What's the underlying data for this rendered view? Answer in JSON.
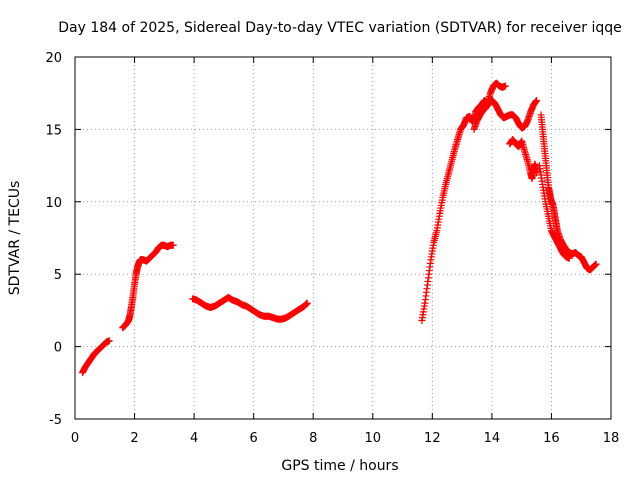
{
  "chart_data": {
    "type": "scatter",
    "title": "Day 184 of 2025, Sidereal Day-to-day VTEC variation (SDTVAR) for receiver iqqe",
    "xlabel": "GPS time / hours",
    "ylabel": "SDTVAR / TECUs",
    "xlim": [
      0,
      18
    ],
    "ylim": [
      -5,
      20
    ],
    "xticks": [
      0,
      2,
      4,
      6,
      8,
      10,
      12,
      14,
      16,
      18
    ],
    "yticks": [
      -5,
      0,
      5,
      10,
      15,
      20
    ],
    "grid": true,
    "marker": "+",
    "color": "#ff0000",
    "series": [
      {
        "name": "segment-1",
        "x": [
          0.25,
          0.35,
          0.45,
          0.55,
          0.65,
          0.75,
          0.85,
          0.95,
          1.05,
          1.15
        ],
        "y": [
          -1.8,
          -1.4,
          -1.1,
          -0.8,
          -0.5,
          -0.3,
          -0.1,
          0.1,
          0.3,
          0.4
        ]
      },
      {
        "name": "segment-2",
        "x": [
          1.6,
          1.7,
          1.8,
          1.85,
          1.9,
          1.95,
          2.0,
          2.05,
          2.1,
          2.15,
          2.2,
          2.3,
          2.4,
          2.5,
          2.6,
          2.7,
          2.8,
          2.9,
          3.0,
          3.1,
          3.2,
          3.3
        ],
        "y": [
          1.3,
          1.5,
          1.8,
          2.2,
          2.8,
          3.5,
          4.3,
          5.0,
          5.5,
          5.8,
          6.0,
          6.0,
          5.9,
          6.1,
          6.3,
          6.5,
          6.8,
          7.0,
          7.0,
          6.9,
          7.0,
          7.0
        ]
      },
      {
        "name": "segment-3",
        "x": [
          3.95,
          4.1,
          4.25,
          4.4,
          4.55,
          4.7,
          4.85,
          5.0,
          5.15,
          5.3,
          5.45,
          5.6,
          5.75,
          5.9,
          6.05,
          6.2,
          6.35,
          6.5,
          6.65,
          6.8,
          6.95,
          7.1,
          7.25,
          7.4,
          7.55,
          7.7,
          7.8
        ],
        "y": [
          3.3,
          3.2,
          3.0,
          2.8,
          2.7,
          2.8,
          3.0,
          3.2,
          3.4,
          3.2,
          3.1,
          2.9,
          2.8,
          2.6,
          2.4,
          2.2,
          2.1,
          2.1,
          2.0,
          1.9,
          1.9,
          2.0,
          2.2,
          2.4,
          2.6,
          2.8,
          3.0
        ]
      },
      {
        "name": "segment-4-rise",
        "x": [
          11.65,
          11.75,
          11.85,
          11.95,
          12.05,
          12.15,
          12.25,
          12.35,
          12.45,
          12.55,
          12.65,
          12.75,
          12.85,
          12.95,
          13.05,
          13.15,
          13.25,
          13.35,
          13.45,
          13.55,
          13.65,
          13.75,
          13.85,
          13.95,
          14.05,
          14.15,
          14.25,
          14.35,
          14.45
        ],
        "y": [
          1.8,
          3.0,
          4.5,
          6.0,
          7.2,
          8.0,
          9.2,
          10.3,
          11.2,
          12.0,
          12.8,
          13.6,
          14.3,
          15.0,
          15.3,
          15.8,
          15.9,
          15.5,
          16.2,
          16.5,
          16.7,
          17.0,
          16.8,
          17.5,
          18.0,
          18.2,
          18.0,
          17.9,
          18.0
        ]
      },
      {
        "name": "segment-4-plateau",
        "x": [
          13.4,
          13.5,
          13.6,
          13.7,
          13.8,
          13.9,
          14.0,
          14.1,
          14.2,
          14.3,
          14.4,
          14.5,
          14.6,
          14.7,
          14.8,
          14.9,
          15.0,
          15.1,
          15.2,
          15.3,
          15.4,
          15.5
        ],
        "y": [
          15.0,
          15.6,
          16.0,
          16.3,
          16.5,
          16.8,
          17.0,
          16.8,
          16.4,
          16.0,
          15.8,
          15.9,
          16.0,
          16.0,
          15.8,
          15.4,
          15.1,
          15.2,
          15.6,
          16.2,
          16.7,
          17.0
        ]
      },
      {
        "name": "segment-4-scatter",
        "x": [
          14.6,
          14.7,
          14.8,
          14.9,
          15.0,
          15.1,
          15.2,
          15.3,
          15.35,
          15.4,
          15.45,
          15.5
        ],
        "y": [
          14.0,
          14.3,
          14.0,
          13.8,
          14.2,
          13.5,
          12.8,
          12.0,
          11.6,
          12.3,
          12.6,
          12.0
        ]
      },
      {
        "name": "segment-5",
        "x": [
          15.65,
          15.7,
          15.75,
          15.8,
          15.85,
          15.9,
          15.95,
          16.0,
          16.05,
          16.1,
          16.15,
          16.2,
          16.3,
          16.4,
          16.5,
          16.6,
          16.7,
          16.8,
          16.9,
          17.0,
          17.1,
          17.2,
          17.3,
          17.4,
          17.5
        ],
        "y": [
          16.0,
          15.0,
          14.0,
          13.0,
          12.0,
          11.0,
          10.5,
          10.0,
          9.8,
          9.2,
          8.6,
          8.0,
          7.4,
          7.0,
          6.7,
          6.5,
          6.4,
          6.5,
          6.3,
          6.2,
          5.8,
          5.4,
          5.3,
          5.5,
          5.7
        ]
      },
      {
        "name": "segment-5-lower",
        "x": [
          15.6,
          15.7,
          15.8,
          15.9,
          16.0,
          16.1,
          16.2,
          16.3,
          16.4,
          16.5,
          16.6
        ],
        "y": [
          12.5,
          11.2,
          10.0,
          9.0,
          8.0,
          7.6,
          7.2,
          6.8,
          6.4,
          6.2,
          6.1
        ]
      }
    ]
  }
}
